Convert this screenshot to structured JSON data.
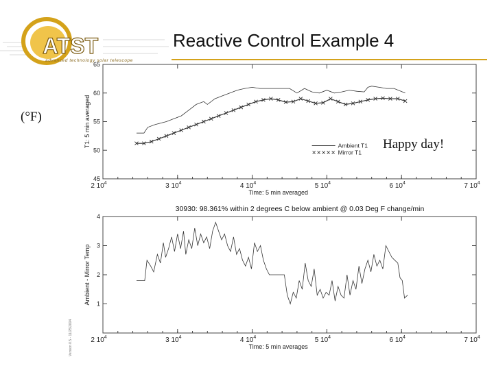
{
  "slide": {
    "title": "Reactive Control Example 4",
    "units_label": "(°F)",
    "annotation": "Happy day!",
    "side_note": "Version 0.5 - 11/25/2004",
    "logo": {
      "wordmark": "ATST",
      "tagline": "advanced technology solar telescope"
    },
    "colors": {
      "accent": "#d4a21a",
      "line": "#333333",
      "axis": "#444444"
    }
  },
  "chart_data": [
    {
      "type": "line",
      "ylabel": "T1: 5 min averaged",
      "xlabel": "Time: 5 min averaged",
      "xlim": [
        20000,
        70000
      ],
      "ylim": [
        45,
        65
      ],
      "x_ticks": [
        20000,
        30000,
        40000,
        50000,
        60000,
        70000
      ],
      "x_tick_labels": [
        {
          "m": "2",
          "e": "4"
        },
        {
          "m": "3",
          "e": "4"
        },
        {
          "m": "4",
          "e": "4"
        },
        {
          "m": "5",
          "e": "4"
        },
        {
          "m": "6",
          "e": "4"
        },
        {
          "m": "7",
          "e": "4"
        }
      ],
      "y_ticks": [
        45,
        50,
        55,
        60,
        65
      ],
      "y_tick_labels": [
        "45",
        "50",
        "55",
        "60",
        "65"
      ],
      "legend": [
        "Ambient T1",
        "Mirror T1"
      ],
      "series": [
        {
          "name": "Ambient T1",
          "style": "line",
          "x": [
            24500,
            25500,
            26000,
            27000,
            28500,
            29500,
            30500,
            31500,
            32500,
            33500,
            34000,
            35000,
            36000,
            37000,
            38000,
            39000,
            40000,
            41000,
            42000,
            43000,
            44000,
            45000,
            46000,
            47000,
            48000,
            49000,
            50000,
            51000,
            52000,
            53000,
            54000,
            55000,
            55500,
            56000,
            57000,
            58000,
            59000,
            60500
          ],
          "y": [
            53,
            53,
            54,
            54.5,
            55,
            55.5,
            56,
            57,
            58,
            58.5,
            58,
            59,
            59.5,
            60,
            60.5,
            60.8,
            61,
            60.8,
            60.8,
            60.8,
            60.8,
            60.8,
            60,
            60.8,
            60.2,
            60,
            60.5,
            60,
            60.2,
            60.5,
            60.3,
            60.2,
            61,
            61.2,
            61,
            60.8,
            60.8,
            60
          ]
        },
        {
          "name": "Mirror T1",
          "style": "markers",
          "x": [
            24500,
            25500,
            26500,
            27500,
            28500,
            29500,
            30500,
            31500,
            32500,
            33500,
            34500,
            35500,
            36500,
            37500,
            38500,
            39500,
            40500,
            41500,
            42500,
            43500,
            44500,
            45500,
            46500,
            47500,
            48500,
            49500,
            50500,
            51500,
            52500,
            53500,
            54500,
            55500,
            56500,
            57500,
            58500,
            59500,
            60500
          ],
          "y": [
            51.2,
            51.2,
            51.5,
            52,
            52.5,
            53,
            53.5,
            54,
            54.5,
            55,
            55.5,
            56,
            56.5,
            57,
            57.5,
            58,
            58.5,
            58.8,
            59,
            58.8,
            58.4,
            58.5,
            59,
            58.6,
            58.2,
            58.3,
            59,
            58.5,
            58,
            58.2,
            58.5,
            58.8,
            59,
            59.1,
            59,
            59,
            58.6
          ]
        }
      ]
    },
    {
      "type": "line",
      "title": "30930:   98.361% within 2 degrees C below ambient @ 0.03 Deg F change/min",
      "ylabel": "Ambient - Mirror Temp",
      "xlabel": "Time: 5 min averages",
      "xlim": [
        20000,
        70000
      ],
      "ylim": [
        0,
        4
      ],
      "x_ticks": [
        20000,
        30000,
        40000,
        50000,
        60000,
        70000
      ],
      "x_tick_labels": [
        {
          "m": "2",
          "e": "4"
        },
        {
          "m": "3",
          "e": "4"
        },
        {
          "m": "4",
          "e": "4"
        },
        {
          "m": "5",
          "e": "4"
        },
        {
          "m": "6",
          "e": "4"
        },
        {
          "m": "7",
          "e": "4"
        }
      ],
      "y_ticks": [
        1,
        2,
        3,
        4
      ],
      "y_tick_labels": [
        "1",
        "2",
        "3",
        "4"
      ],
      "series": [
        {
          "name": "Ambient - Mirror Temp",
          "x": [
            24500,
            25600,
            25900,
            26400,
            26800,
            27300,
            27700,
            28100,
            28400,
            28800,
            29200,
            29600,
            30000,
            30400,
            30800,
            31100,
            31500,
            31900,
            32300,
            32700,
            33100,
            33500,
            33900,
            34300,
            34700,
            35100,
            35500,
            35900,
            36300,
            36700,
            37100,
            37500,
            37900,
            38300,
            38700,
            39100,
            39500,
            39900,
            40300,
            40700,
            41100,
            41500,
            41900,
            42300,
            42700,
            43100,
            43500,
            43900,
            44300,
            44700,
            45100,
            45500,
            45900,
            46300,
            46700,
            47100,
            47500,
            47900,
            48300,
            48700,
            49100,
            49500,
            49900,
            50300,
            50700,
            51100,
            51500,
            51900,
            52300,
            52700,
            53100,
            53500,
            53900,
            54300,
            54700,
            55100,
            55500,
            55900,
            56300,
            56700,
            57100,
            57500,
            57900,
            58300,
            58700,
            59100,
            59500,
            59800,
            60100,
            60400,
            60800
          ],
          "y": [
            1.8,
            1.8,
            2.5,
            2.3,
            2.1,
            2.7,
            2.4,
            3.1,
            2.6,
            2.9,
            3.3,
            2.8,
            3.4,
            2.9,
            3.5,
            2.7,
            3.2,
            2.9,
            3.6,
            3.0,
            3.4,
            3.1,
            3.3,
            2.9,
            3.5,
            3.8,
            3.5,
            3.2,
            3.4,
            3.0,
            2.8,
            3.3,
            2.7,
            2.9,
            2.5,
            2.3,
            2.6,
            2.2,
            3.1,
            2.8,
            3.0,
            2.5,
            2.2,
            2.0,
            2.0,
            2.0,
            2.0,
            2.0,
            2.0,
            1.3,
            1.0,
            1.4,
            1.2,
            1.8,
            1.5,
            2.4,
            1.8,
            1.6,
            2.2,
            1.3,
            1.5,
            1.2,
            1.4,
            1.3,
            1.8,
            1.1,
            1.6,
            1.3,
            1.2,
            2.0,
            1.3,
            1.8,
            1.5,
            2.3,
            1.7,
            2.2,
            2.5,
            2.1,
            2.7,
            2.3,
            2.5,
            2.2,
            3.0,
            2.8,
            2.6,
            2.5,
            2.4,
            1.9,
            1.8,
            1.2,
            1.3
          ]
        }
      ]
    }
  ]
}
